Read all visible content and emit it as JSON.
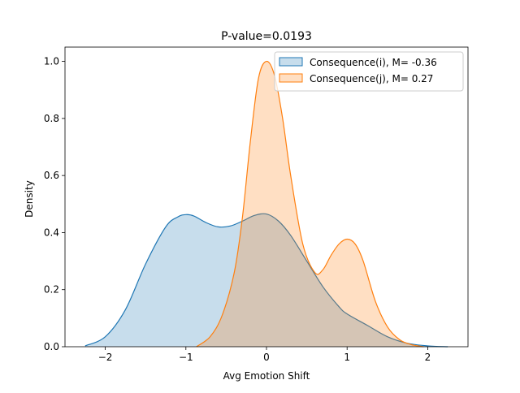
{
  "chart_data": {
    "type": "area",
    "title": "P-value=0.0193",
    "xlabel": "Avg Emotion Shift",
    "ylabel": "Density",
    "xlim": [
      -2.5,
      2.5
    ],
    "ylim": [
      0,
      1.05
    ],
    "xticks": [
      -2,
      -1,
      0,
      1,
      2
    ],
    "yticks": [
      0.0,
      0.2,
      0.4,
      0.6,
      0.8,
      1.0
    ],
    "xtick_labels": [
      "−2",
      "−1",
      "0",
      "1",
      "2"
    ],
    "ytick_labels": [
      "0.0",
      "0.2",
      "0.4",
      "0.6",
      "0.8",
      "1.0"
    ],
    "legend_position": "top-right",
    "grid": false,
    "series": [
      {
        "name": "Consequence(i), M= -0.36",
        "color": "#1f77b4",
        "x": [
          -2.25,
          -2.0,
          -1.75,
          -1.5,
          -1.25,
          -1.1,
          -1.0,
          -0.9,
          -0.75,
          -0.6,
          -0.45,
          -0.3,
          -0.15,
          0.0,
          0.15,
          0.3,
          0.5,
          0.7,
          0.9,
          1.0,
          1.25,
          1.5,
          1.75,
          2.0,
          2.25
        ],
        "y": [
          0.003,
          0.035,
          0.13,
          0.29,
          0.42,
          0.455,
          0.463,
          0.458,
          0.435,
          0.42,
          0.423,
          0.44,
          0.46,
          0.465,
          0.44,
          0.39,
          0.3,
          0.21,
          0.14,
          0.115,
          0.075,
          0.035,
          0.012,
          0.003,
          0.0
        ]
      },
      {
        "name": "Consequence(j), M= 0.27",
        "color": "#ff7f0e",
        "x": [
          -0.87,
          -0.7,
          -0.55,
          -0.4,
          -0.3,
          -0.2,
          -0.1,
          0.0,
          0.1,
          0.2,
          0.3,
          0.45,
          0.6,
          0.7,
          0.8,
          0.9,
          1.0,
          1.1,
          1.2,
          1.35,
          1.5,
          1.65,
          1.8,
          1.95
        ],
        "y": [
          0.0,
          0.035,
          0.11,
          0.26,
          0.45,
          0.72,
          0.94,
          1.0,
          0.95,
          0.8,
          0.6,
          0.36,
          0.26,
          0.27,
          0.32,
          0.36,
          0.377,
          0.36,
          0.3,
          0.16,
          0.07,
          0.025,
          0.007,
          0.0
        ]
      }
    ]
  }
}
